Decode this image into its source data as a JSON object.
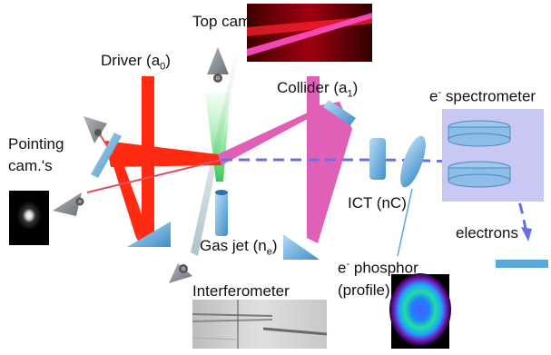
{
  "labels": {
    "top_cam": "Top cam.",
    "driver": "Driver (a",
    "driver_sub": "0",
    "driver_close": ")",
    "collider": "Collider (a",
    "collider_sub": "1",
    "collider_close": ")",
    "spectrometer_sup": "e",
    "spectrometer_sup_minus": "-",
    "spectrometer": " spectrometer",
    "pointing_line1": "Pointing",
    "pointing_line2": "cam.'s",
    "ict": "ICT (nC)",
    "electrons": "electrons",
    "gasjet": "Gas jet (n",
    "gasjet_sub": "e",
    "gasjet_close": ")",
    "phosphor_sup": "e",
    "phosphor_sup_minus": "-",
    "phosphor_line1": " phosphor",
    "phosphor_line2": "(profile)",
    "interferometer": "Interferometer"
  },
  "colors": {
    "driver_beam": "#ff2a12",
    "collider_beam": "#e060b8",
    "electron_beam": "#6a6fe8",
    "optics": "#5aa8d8",
    "spectrometer_box": "#c9c8f2",
    "camera": "#808890",
    "green_beam": "#33d055"
  }
}
